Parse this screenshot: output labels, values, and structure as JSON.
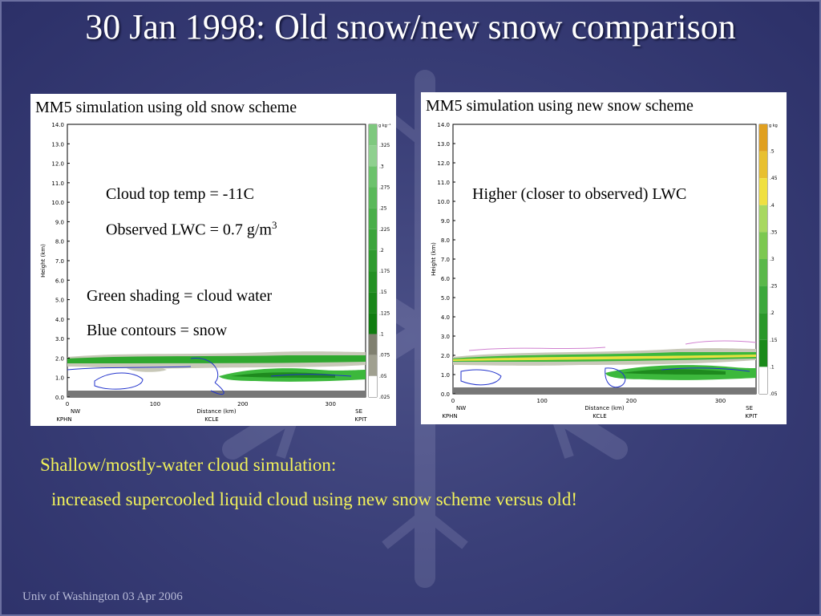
{
  "title": "30 Jan 1998: Old snow/new snow comparison",
  "panels": [
    {
      "caption": "MM5 simulation using old snow scheme",
      "notes": [
        "Cloud top temp = -11C",
        "Observed LWC = 0.7 g/m",
        "Green shading = cloud water",
        "Blue contours = snow"
      ],
      "superscript": "3",
      "y_ticks": [
        "14.0",
        "13.0",
        "12.0",
        "11.0",
        "10.0",
        "9.0",
        "8.0",
        "7.0",
        "6.0",
        "5.0",
        "4.0",
        "3.0",
        "2.0",
        "1.0",
        "0.0"
      ],
      "x_ticks": [
        "0",
        "100",
        "200",
        "300"
      ],
      "x_label": "Distance (km)",
      "y_label": "Height (km)",
      "corners": [
        "NW",
        "SE"
      ],
      "stations": [
        "KPHN",
        "KCLE",
        "KPIT"
      ],
      "colorbar_unit": "g kg⁻¹",
      "colorbar_ticks": [
        ".325",
        ".3",
        ".275",
        ".25",
        ".225",
        ".2",
        ".175",
        ".15",
        ".125",
        ".1",
        ".075",
        ".05",
        ".025"
      ]
    },
    {
      "caption": "MM5 simulation using new snow scheme",
      "notes": [
        "Higher (closer to observed) LWC"
      ],
      "y_ticks": [
        "14.0",
        "13.0",
        "12.0",
        "11.0",
        "10.0",
        "9.0",
        "8.0",
        "7.0",
        "6.0",
        "5.0",
        "4.0",
        "3.0",
        "2.0",
        "1.0",
        "0.0"
      ],
      "x_ticks": [
        "0",
        "100",
        "200",
        "300"
      ],
      "x_label": "Distance (km)",
      "y_label": "Height (km)",
      "corners": [
        "NW",
        "SE"
      ],
      "stations": [
        "KPHN",
        "KCLE",
        "KPIT"
      ],
      "colorbar_unit": "g kg",
      "colorbar_ticks": [
        ".5",
        ".45",
        ".4",
        ".35",
        ".3",
        ".25",
        ".2",
        ".15",
        ".1",
        ".05"
      ]
    }
  ],
  "bottom": {
    "line1": "Shallow/mostly-water cloud simulation:",
    "line2": "increased supercooled liquid cloud using new snow scheme versus old!"
  },
  "footer": "Univ of Washington 03 Apr 2006",
  "colors": {
    "background": "#3a3f78",
    "title_text": "#ffffff",
    "highlight_text": "#f2f25a",
    "cloud_water": "#2fa82f",
    "snow_contour": "#2233cc"
  }
}
